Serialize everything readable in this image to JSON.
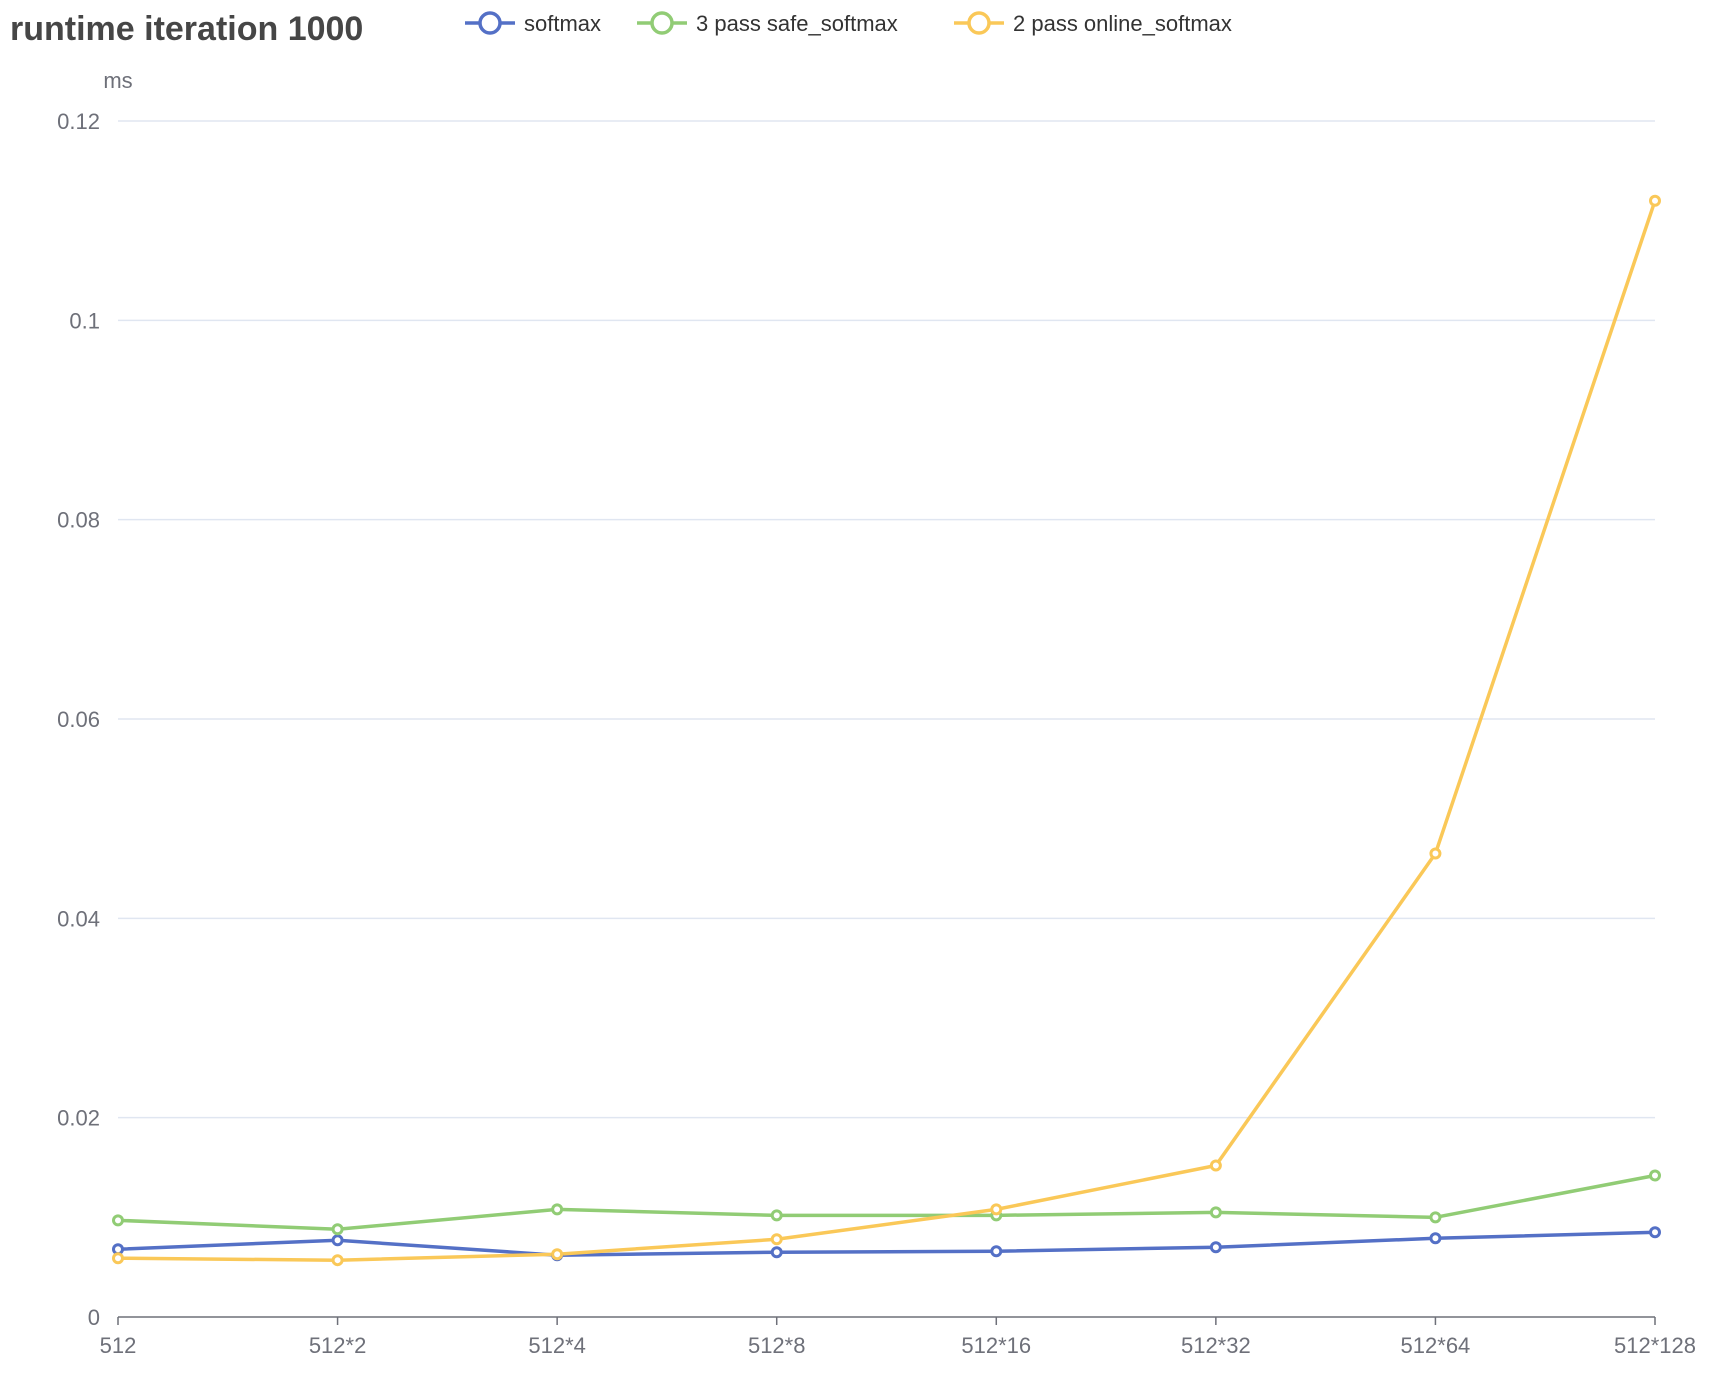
{
  "chart_data": {
    "type": "line",
    "title": "runtime iteration 1000",
    "ylabel": "ms",
    "xlabel": "",
    "categories": [
      "512",
      "512*2",
      "512*4",
      "512*8",
      "512*16",
      "512*32",
      "512*64",
      "512*128"
    ],
    "ylim": [
      0,
      0.12
    ],
    "yticks": [
      0,
      0.02,
      0.04,
      0.06,
      0.08,
      0.1,
      0.12
    ],
    "ytick_labels": [
      "0",
      "0.02",
      "0.04",
      "0.06",
      "0.08",
      "0.1",
      "0.12"
    ],
    "grid": "horizontal",
    "legend_position": "top",
    "series": [
      {
        "name": "softmax",
        "color": "#5470c6",
        "values": [
          0.0068,
          0.0077,
          0.0062,
          0.0065,
          0.0066,
          0.007,
          0.0079,
          0.0085
        ]
      },
      {
        "name": "3 pass safe_softmax",
        "color": "#91cc75",
        "values": [
          0.0097,
          0.0088,
          0.0108,
          0.0102,
          0.0102,
          0.0105,
          0.01,
          0.0142
        ]
      },
      {
        "name": "2 pass online_softmax",
        "color": "#fac858",
        "values": [
          0.0059,
          0.0057,
          0.0063,
          0.0078,
          0.0108,
          0.0152,
          0.0465,
          0.112
        ]
      }
    ]
  }
}
